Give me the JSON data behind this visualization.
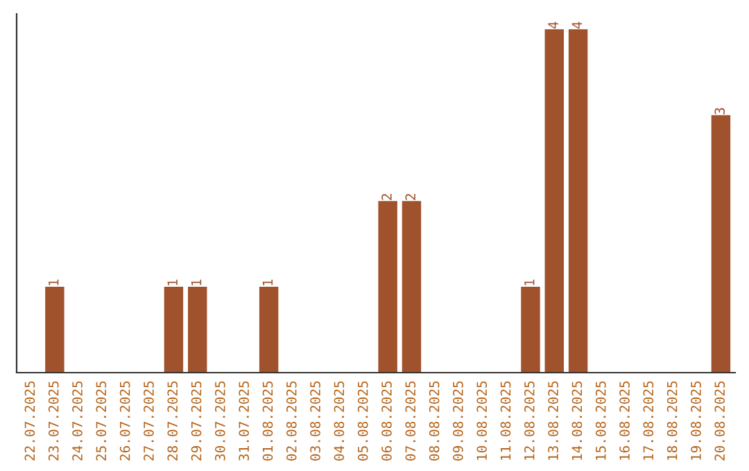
{
  "chart_data": {
    "type": "bar",
    "categories": [
      "22.07.2025",
      "23.07.2025",
      "24.07.2025",
      "25.07.2025",
      "26.07.2025",
      "27.07.2025",
      "28.07.2025",
      "29.07.2025",
      "30.07.2025",
      "31.07.2025",
      "01.08.2025",
      "02.08.2025",
      "03.08.2025",
      "04.08.2025",
      "05.08.2025",
      "06.08.2025",
      "07.08.2025",
      "08.08.2025",
      "09.08.2025",
      "10.08.2025",
      "11.08.2025",
      "12.08.2025",
      "13.08.2025",
      "14.08.2025",
      "15.08.2025",
      "16.08.2025",
      "17.08.2025",
      "18.08.2025",
      "19.08.2025",
      "20.08.2025"
    ],
    "values": [
      0,
      1,
      0,
      0,
      0,
      0,
      1,
      1,
      0,
      0,
      1,
      0,
      0,
      0,
      0,
      2,
      2,
      0,
      0,
      0,
      0,
      1,
      4,
      4,
      0,
      0,
      0,
      0,
      0,
      3
    ],
    "value_labels": [
      null,
      "1",
      null,
      null,
      null,
      null,
      "1",
      "1",
      null,
      null,
      "1",
      null,
      null,
      null,
      null,
      "2",
      "2",
      null,
      null,
      null,
      null,
      "1",
      "4",
      "4",
      null,
      null,
      null,
      null,
      null,
      "3"
    ],
    "color": "#a0522d",
    "tick_labels": "x",
    "grid": false,
    "legend": false
  }
}
